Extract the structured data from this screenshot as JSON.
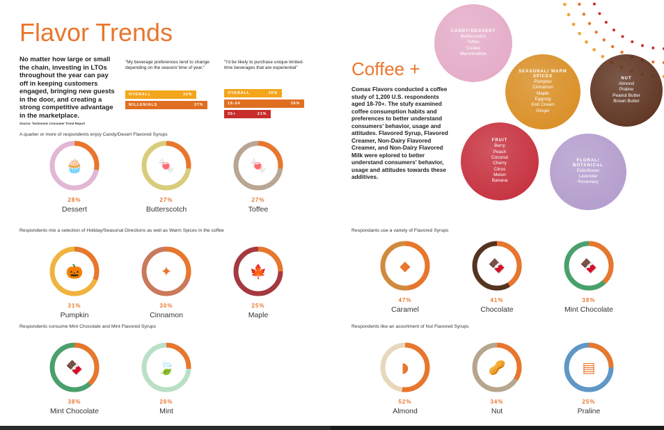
{
  "page": {
    "title": "Flavor Trends",
    "source": "Source: Technomic Consumer Trend Report"
  },
  "intro": "No matter how large or small the chain, investing in LTOs throughout the year can pay off in keeping customers engaged, bringing new guests in the door, and creating a strong competitive advantage in the marketplace.",
  "quote1": {
    "text": "\"My beverage preferences tend to change depending on the season/ time of year.\"",
    "bars": [
      {
        "label": "OVERALL",
        "pct": "32%",
        "value": 32,
        "color": "#f3a51b"
      },
      {
        "label": "MILLENIALS",
        "pct": "37%",
        "value": 37,
        "color": "#e06f22"
      }
    ]
  },
  "quote2": {
    "text": "\"I'd be likely to purchase unique limited-time beverages that are experiential\"",
    "bars": [
      {
        "label": "OVERALL",
        "pct": "26%",
        "value": 26,
        "color": "#f3a51b"
      },
      {
        "label": "18-34",
        "pct": "36%",
        "value": 36,
        "color": "#e06f22"
      },
      {
        "label": "35+",
        "pct": "21%",
        "value": 21,
        "color": "#c62d2a"
      }
    ]
  },
  "sections": {
    "s1": "A quarter or more of respondents enjoy Candy/Desert Flavored Syrups",
    "s2": "Respondents mix a selection of Holiday/Seasonal Directions as well as Warm Spices in the coffee",
    "s3": "Respondents consume Mint Chocolate and Mint Flavored Syrups",
    "s4": "Respondants use a variety of Flavored Syrups",
    "s5": "Respondents like an assortment of Nut Flavored Syrups"
  },
  "rings": [
    {
      "id": "dessert",
      "pct": "28%",
      "value": 28,
      "label": "Dessert",
      "color": "#e2b7d4",
      "icon": "cupcake-icon",
      "glyph": "🧁"
    },
    {
      "id": "butterscotch",
      "pct": "27%",
      "value": 27,
      "label": "Butterscotch",
      "color": "#d9cc7b",
      "icon": "candy-icon",
      "glyph": "🍬"
    },
    {
      "id": "toffee",
      "pct": "27%",
      "value": 27,
      "label": "Toffee",
      "color": "#b9a593",
      "icon": "candy-icon",
      "glyph": "🍬"
    },
    {
      "id": "pumpkin",
      "pct": "31%",
      "value": 31,
      "label": "Pumpkin",
      "color": "#f0b33e",
      "icon": "pumpkin-icon",
      "glyph": "🎃"
    },
    {
      "id": "cinnamon",
      "pct": "30%",
      "value": 30,
      "label": "Cinnamon",
      "color": "#c97a5b",
      "icon": "cinnamon-icon",
      "glyph": "✦"
    },
    {
      "id": "maple",
      "pct": "25%",
      "value": 25,
      "label": "Maple",
      "color": "#a4393f",
      "icon": "maple-leaf-icon",
      "glyph": "🍁"
    },
    {
      "id": "mintchoc1",
      "pct": "38%",
      "value": 38,
      "label": "Mint Chocolate",
      "color": "#4aa06d",
      "icon": "chocolate-icon",
      "glyph": "🍫"
    },
    {
      "id": "mint",
      "pct": "26%",
      "value": 26,
      "label": "Mint",
      "color": "#b9e0c6",
      "icon": "leaf-icon",
      "glyph": "🍃"
    },
    {
      "id": "caramel",
      "pct": "47%",
      "value": 47,
      "label": "Caramel",
      "color": "#d08a3e",
      "icon": "caramel-icon",
      "glyph": "◆"
    },
    {
      "id": "chocolate",
      "pct": "41%",
      "value": 41,
      "label": "Chocolate",
      "color": "#55341f",
      "icon": "chocolate-icon",
      "glyph": "🍫"
    },
    {
      "id": "mintchoc2",
      "pct": "38%",
      "value": 38,
      "label": "Mint Chocolate",
      "color": "#4aa06d",
      "icon": "chocolate-icon",
      "glyph": "🍫"
    },
    {
      "id": "almond",
      "pct": "52%",
      "value": 52,
      "label": "Almond",
      "color": "#e8d7bd",
      "icon": "almond-icon",
      "glyph": "◗"
    },
    {
      "id": "nut",
      "pct": "34%",
      "value": 34,
      "label": "Nut",
      "color": "#b7a68d",
      "icon": "nut-icon",
      "glyph": "🥜"
    },
    {
      "id": "praline",
      "pct": "25%",
      "value": 25,
      "label": "Praline",
      "color": "#5f97c5",
      "icon": "praline-icon",
      "glyph": "▤"
    }
  ],
  "coffee": {
    "title": "Coffee +",
    "body": "Comax Flavors conducted a coffee study of 1,200 U.S. respondents aged 18-70+. The stufy examined coffee consumption habits and preferences to better understand consumers' behavior, usage and attitudes. Flavored Syrup, Flavored Creamer, Non-Dairy Flavored Creamer, and Non-Dairy Flavored Milk were eplored to better understand consumers' behavior, usage and attitudes towards these additives."
  },
  "bubbles": [
    {
      "id": "candy",
      "title": "CANDY/DESSERT",
      "items": [
        "Butterscotch",
        "Toffee",
        "Cookie",
        "Marshmallow"
      ],
      "color": "#e3a9c6"
    },
    {
      "id": "seasonal",
      "title": "SEASONAL/ WARM SPICES",
      "items": [
        "Pumpkin",
        "Cinnamon",
        "Maple",
        "Eggnog",
        "Irish Cream",
        "Ginger"
      ],
      "color": "#d88b1e"
    },
    {
      "id": "nut",
      "title": "NUT",
      "items": [
        "Almond",
        "Praline",
        "Peanut Butter",
        "Brown Butter"
      ],
      "color": "#5a2e1a"
    },
    {
      "id": "fruit",
      "title": "FRUIT",
      "items": [
        "Berry",
        "Peach",
        "Coconut",
        "Cherry",
        "Citrus",
        "Melon",
        "Banana"
      ],
      "color": "#c42a38"
    },
    {
      "id": "floral",
      "title": "FLORAL/ BOTANICAL",
      "items": [
        "Elderflower",
        "Lavender",
        "Rosemary"
      ],
      "color": "#b19acb"
    }
  ],
  "accent": "#e8762d"
}
